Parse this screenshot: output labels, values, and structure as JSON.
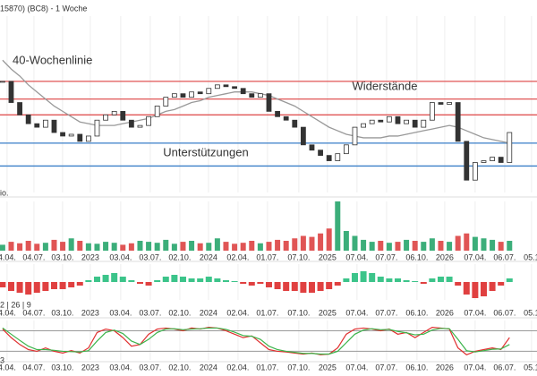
{
  "chart_data": [
    {
      "type": "candlestick",
      "title": "15870) (BC8) - 1 Woche",
      "color": "#333333",
      "values": [
        63,
        51,
        44,
        39,
        37,
        41,
        34,
        32,
        33,
        29,
        32,
        41,
        44,
        46,
        41,
        37,
        38,
        43,
        49,
        54,
        56,
        54,
        57,
        56,
        59,
        61,
        60,
        59,
        56,
        54,
        56,
        46,
        43,
        41,
        37,
        27,
        24,
        21,
        18,
        22,
        27,
        37,
        39,
        41,
        40,
        43,
        39,
        41,
        37,
        41,
        51,
        50,
        51,
        29,
        7,
        17,
        18,
        20,
        17,
        34
      ],
      "ma": {
        "name": "40-Wochenlinie",
        "color": "#999999",
        "values": [
          75,
          70,
          66,
          61,
          57,
          53,
          49,
          46,
          43,
          40,
          39,
          38,
          38,
          38,
          39,
          40,
          41,
          42,
          44,
          46,
          47,
          49,
          51,
          52,
          54,
          55,
          56,
          57,
          57,
          57,
          56,
          55,
          53,
          51,
          49,
          46,
          43,
          40,
          37,
          35,
          33,
          32,
          31,
          31,
          31,
          32,
          32,
          33,
          34,
          35,
          36,
          37,
          38,
          37,
          35,
          33,
          31,
          30,
          29,
          28
        ]
      },
      "resistance": {
        "name": "Widerstände",
        "color": "#e05555",
        "values": [
          63,
          53,
          44
        ]
      },
      "support": {
        "name": "Unterstützungen",
        "color": "#3a7fc8",
        "values": [
          28,
          15
        ]
      },
      "xlim": [
        -0.3,
        62.2
      ],
      "ylim": [
        0,
        100
      ],
      "xticks": [
        {
          "value": 0.52,
          "label": "4.04."
        },
        {
          "value": 3.65,
          "label": "04.07."
        },
        {
          "value": 6.98,
          "label": "03.10."
        },
        {
          "value": 10.21,
          "label": "2023"
        },
        {
          "value": 13.75,
          "label": "03.04."
        },
        {
          "value": 17.19,
          "label": "03.07."
        },
        {
          "value": 20.63,
          "label": "02.10."
        },
        {
          "value": 23.96,
          "label": "2024"
        },
        {
          "value": 27.4,
          "label": "02.04."
        },
        {
          "value": 30.83,
          "label": "01.07."
        },
        {
          "value": 34.48,
          "label": "07.10."
        },
        {
          "value": 37.81,
          "label": "2025"
        },
        {
          "value": 41.25,
          "label": "07.04."
        },
        {
          "value": 44.69,
          "label": "07.07."
        },
        {
          "value": 48.23,
          "label": "06.10."
        },
        {
          "value": 51.46,
          "label": "2026"
        },
        {
          "value": 55,
          "label": "07.04."
        },
        {
          "value": 58.44,
          "label": "06.07."
        },
        {
          "value": 61.56,
          "label": "05.1"
        }
      ]
    },
    {
      "type": "bar",
      "label": "io.",
      "up_color": "#3cae7a",
      "down_color": "#e05555",
      "ylim": [
        0,
        100
      ],
      "values": [
        12,
        18,
        15,
        20,
        14,
        16,
        22,
        18,
        25,
        20,
        15,
        14,
        18,
        16,
        12,
        15,
        20,
        18,
        16,
        22,
        14,
        18,
        20,
        15,
        16,
        25,
        18,
        14,
        16,
        20,
        15,
        18,
        22,
        20,
        25,
        30,
        28,
        35,
        45,
        100,
        40,
        30,
        22,
        18,
        20,
        16,
        18,
        22,
        20,
        18,
        25,
        20,
        18,
        30,
        35,
        28,
        25,
        22,
        18,
        20
      ]
    },
    {
      "type": "histogram",
      "label": "2 | 26 | 9",
      "up_color": "#3cc48a",
      "down_color": "#e04040",
      "ylim": [
        -10,
        10
      ],
      "values": [
        -3,
        -5,
        -6,
        -7,
        -6,
        -5,
        -4,
        -4,
        -3,
        -2,
        1,
        3,
        4,
        5,
        3,
        1,
        -1,
        -2,
        1,
        3,
        4,
        3,
        2,
        2,
        3,
        2,
        1,
        0.5,
        -1,
        -2,
        -1,
        -3,
        -4,
        -5,
        -5,
        -6,
        -6,
        -5,
        -4,
        -2,
        2,
        5,
        6,
        5,
        3,
        2,
        2,
        1,
        0.5,
        -1,
        2,
        3,
        3,
        -2,
        -7,
        -9,
        -8,
        -5,
        -2,
        2
      ]
    },
    {
      "type": "line",
      "label": "3",
      "ylim": [
        -5,
        110
      ],
      "yticks": [
        20,
        80
      ],
      "grid": true,
      "series": [
        {
          "color": "#e03030",
          "values": [
            85,
            60,
            40,
            25,
            20,
            30,
            20,
            15,
            22,
            15,
            30,
            75,
            85,
            80,
            60,
            35,
            40,
            70,
            85,
            88,
            85,
            80,
            88,
            85,
            90,
            88,
            80,
            70,
            60,
            65,
            45,
            25,
            20,
            18,
            15,
            12,
            15,
            10,
            12,
            30,
            70,
            85,
            88,
            85,
            80,
            85,
            70,
            75,
            60,
            75,
            90,
            88,
            85,
            30,
            10,
            20,
            25,
            30,
            25,
            60
          ]
        },
        {
          "color": "#3cb44b",
          "values": [
            88,
            70,
            52,
            35,
            25,
            25,
            23,
            20,
            19,
            18,
            22,
            50,
            75,
            82,
            72,
            50,
            40,
            55,
            75,
            85,
            86,
            83,
            85,
            86,
            88,
            88,
            84,
            76,
            66,
            64,
            55,
            35,
            25,
            20,
            17,
            14,
            14,
            12,
            12,
            20,
            45,
            70,
            82,
            86,
            83,
            84,
            78,
            74,
            68,
            70,
            82,
            87,
            86,
            55,
            22,
            18,
            22,
            26,
            27,
            40
          ]
        }
      ]
    }
  ]
}
